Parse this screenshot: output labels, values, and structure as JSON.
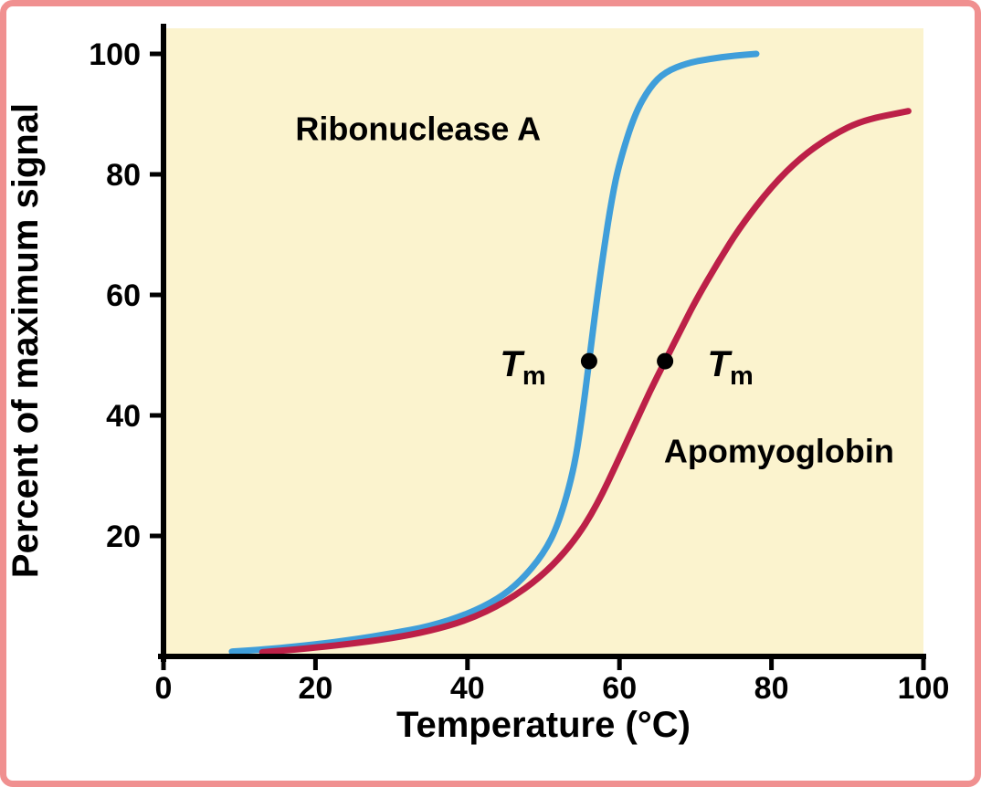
{
  "frame": {
    "border_color": "#f09090",
    "background_color": "#ffffff"
  },
  "chart_data": {
    "type": "line",
    "title": "",
    "xlabel": "Temperature (°C)",
    "ylabel": "Percent of maximum signal",
    "xlim": [
      0,
      100
    ],
    "ylim": [
      0,
      100
    ],
    "x_ticks": [
      0,
      20,
      40,
      60,
      80,
      100
    ],
    "y_ticks": [
      20,
      40,
      60,
      80,
      100
    ],
    "grid": false,
    "legend_position": "none",
    "plot_bg": "#fbf3ce",
    "axis_color": "#000000",
    "series": [
      {
        "name": "Ribonuclease A",
        "color": "#3f9eda",
        "tm": 56,
        "x": [
          9,
          14,
          20,
          25,
          30,
          35,
          40,
          44,
          47,
          50,
          52,
          54,
          55,
          56,
          57,
          58,
          59,
          60,
          62,
          64,
          66,
          69,
          72,
          75,
          78
        ],
        "y": [
          0.8,
          1.2,
          2,
          2.8,
          3.8,
          5,
          7,
          9.5,
          12.5,
          17,
          22,
          31,
          39,
          49,
          59,
          68,
          76,
          82,
          90,
          94.5,
          97,
          98.5,
          99.2,
          99.7,
          100
        ]
      },
      {
        "name": "Apomyoglobin",
        "color": "#bc2048",
        "tm": 66,
        "x": [
          13,
          18,
          24,
          30,
          35,
          40,
          45,
          50,
          54,
          57,
          60,
          62,
          64,
          66,
          68,
          70,
          73,
          76,
          80,
          84,
          88,
          92,
          98
        ],
        "y": [
          0.7,
          1.2,
          2,
          3,
          4.2,
          6,
          9,
          13.5,
          19,
          25,
          33,
          38.5,
          44,
          49,
          54,
          59,
          65.5,
          71.5,
          78,
          83,
          86.5,
          89,
          90.5
        ]
      }
    ],
    "markers": [
      {
        "series": "Ribonuclease A",
        "x": 56,
        "y": 49
      },
      {
        "series": "Apomyoglobin",
        "x": 66,
        "y": 49
      }
    ],
    "tm_label": {
      "symbol": "T",
      "sub": "m"
    },
    "tm_label_positions": [
      {
        "x": 47.3,
        "y": 48.6
      },
      {
        "x": 74.6,
        "y": 48.6
      }
    ],
    "annotations": [
      {
        "id": "ribonuclease-label",
        "text": "Ribonuclease A",
        "x": 33.5,
        "y": 87.5
      },
      {
        "id": "apomyoglobin-label",
        "text": "Apomyoglobin",
        "x": 81,
        "y": 34
      }
    ]
  }
}
